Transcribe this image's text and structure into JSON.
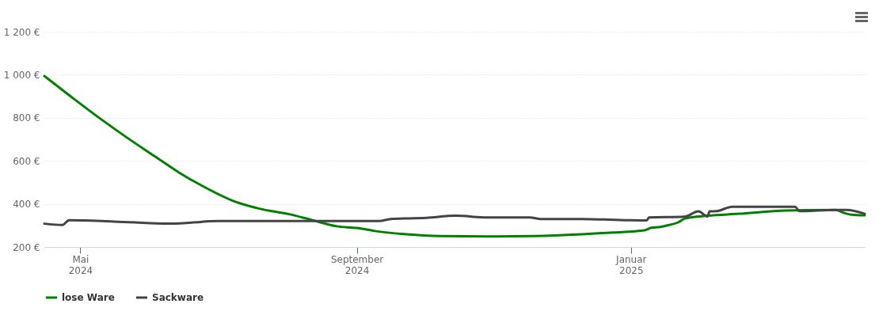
{
  "chart_data": {
    "type": "line",
    "xlim": [
      "2024-04-15",
      "2025-04-15"
    ],
    "xticks": [
      {
        "value": "2024-05-01",
        "label": "Mai 2024"
      },
      {
        "value": "2024-09-01",
        "label": "September 2024"
      },
      {
        "value": "2025-01-01",
        "label": "Januar 2025"
      }
    ],
    "ylim": [
      200,
      1200
    ],
    "yticks": [
      {
        "value": 200,
        "label": "200 €"
      },
      {
        "value": 400,
        "label": "400 €"
      },
      {
        "value": 600,
        "label": "600 €"
      },
      {
        "value": 800,
        "label": "800 €"
      },
      {
        "value": 1000,
        "label": "1 000 €"
      },
      {
        "value": 1200,
        "label": "1 200 €"
      }
    ],
    "grid": "y",
    "legend": "bottom",
    "marker": "none",
    "line_style": "solid",
    "series": [
      {
        "name": "lose Ware",
        "color": "#008000",
        "x": [
          "2024-04-15",
          "2024-04-28",
          "2024-05-10",
          "2024-05-22",
          "2024-06-03",
          "2024-06-14",
          "2024-06-26",
          "2024-07-08",
          "2024-07-20",
          "2024-08-02",
          "2024-08-12",
          "2024-08-23",
          "2024-09-01",
          "2024-09-09",
          "2024-09-23",
          "2024-10-08",
          "2024-10-29",
          "2024-11-19",
          "2024-12-10",
          "2024-12-24",
          "2025-01-07",
          "2025-01-10",
          "2025-01-14",
          "2025-01-18",
          "2025-01-22",
          "2025-01-25",
          "2025-02-04",
          "2025-02-18",
          "2025-03-11",
          "2025-04-02",
          "2025-04-06",
          "2025-04-09",
          "2025-04-15"
        ],
        "values": [
          994,
          889,
          795,
          706,
          622,
          545,
          474,
          414,
          377,
          352,
          325,
          296,
          288,
          274,
          259,
          251,
          249,
          251,
          259,
          267,
          277,
          289,
          293,
          302,
          314,
          332,
          345,
          354,
          369,
          372,
          357,
          350,
          347
        ]
      },
      {
        "name": "Sackware",
        "color": "#434348",
        "x": [
          "2024-04-15",
          "2024-04-23",
          "2024-04-26",
          "2024-05-16",
          "2024-06-10",
          "2024-07-01",
          "2024-08-02",
          "2024-08-26",
          "2024-09-11",
          "2024-09-16",
          "2024-10-02",
          "2024-10-15",
          "2024-10-29",
          "2024-11-17",
          "2024-11-22",
          "2024-12-10",
          "2024-12-31",
          "2025-01-08",
          "2025-01-09",
          "2025-01-25",
          "2025-01-31",
          "2025-02-04",
          "2025-02-05",
          "2025-02-08",
          "2025-02-15",
          "2025-03-15",
          "2025-03-17",
          "2025-04-02",
          "2025-04-07",
          "2025-04-15"
        ],
        "values": [
          308,
          302,
          324,
          318,
          308,
          320,
          320,
          320,
          320,
          330,
          335,
          345,
          337,
          337,
          330,
          330,
          324,
          323,
          337,
          341,
          365,
          342,
          365,
          366,
          387,
          387,
          366,
          372,
          372,
          354
        ]
      }
    ]
  }
}
